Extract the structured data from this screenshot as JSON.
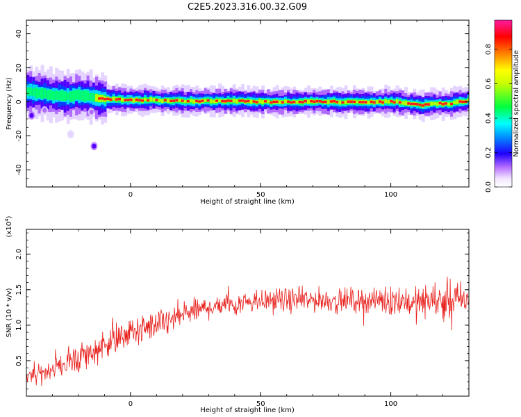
{
  "figure": {
    "title": "C2E5.2023.316.00.32.G09"
  },
  "chart_data": [
    {
      "type": "heatmap",
      "xlabel": "Height of straight line (km)",
      "ylabel": "Frequency (Hz)",
      "xlim": [
        -40,
        130
      ],
      "ylim": [
        -50,
        48
      ],
      "xticks": [
        "0",
        "50",
        "100"
      ],
      "yticks": [
        "-40",
        "-20",
        "0",
        "20",
        "40"
      ],
      "colorbar": {
        "label": "Normalized spectral amplitude",
        "range": [
          0,
          0.97
        ],
        "ticks": [
          "0.0",
          "0.2",
          "0.4",
          "0.6",
          "0.8"
        ]
      },
      "ridge": {
        "x_km": [
          -40,
          -35,
          -30,
          -25,
          -20,
          -15,
          -12,
          -5,
          0,
          10,
          20,
          30,
          40,
          50,
          60,
          70,
          80,
          90,
          97,
          103,
          108,
          112,
          117,
          122,
          127,
          130
        ],
        "frequency_hz": [
          6,
          5,
          4,
          3,
          4,
          3,
          2,
          1.5,
          1,
          1,
          0.5,
          0.5,
          0.5,
          0,
          0,
          0,
          0,
          0,
          0,
          0,
          -1.5,
          -2,
          -1,
          -1,
          0,
          1
        ],
        "peak_amplitude": [
          0.5,
          0.55,
          0.6,
          0.55,
          0.6,
          0.55,
          0.85,
          0.9,
          0.85,
          0.85,
          0.9,
          0.9,
          0.85,
          0.9,
          0.9,
          0.9,
          0.9,
          0.9,
          0.9,
          0.85,
          0.85,
          0.85,
          0.85,
          0.85,
          0.85,
          0.85
        ]
      },
      "blobs": [
        {
          "x_km": -38,
          "frequency_hz": -8,
          "amplitude": 0.2
        },
        {
          "x_km": -33,
          "frequency_hz": -5,
          "amplitude": 0.15
        },
        {
          "x_km": -23,
          "frequency_hz": -19,
          "amplitude": 0.05
        },
        {
          "x_km": -14,
          "frequency_hz": -26,
          "amplitude": 0.2
        },
        {
          "x_km": -15,
          "frequency_hz": -6,
          "amplitude": 0.1
        }
      ]
    },
    {
      "type": "line",
      "xlabel": "Height of straight line (km)",
      "ylabel": "SNR (10 * v/v)",
      "scale_label": "(x10",
      "scale_exp": "4",
      "scale_close": ")",
      "xlim": [
        -40,
        130
      ],
      "ylim": [
        0,
        2.35
      ],
      "xticks": [
        "0",
        "50",
        "100"
      ],
      "yticks": [
        "0.5",
        "1.0",
        "1.5",
        "2.0"
      ],
      "series": [
        {
          "color": "#e8211d",
          "x": [
            -40,
            -35,
            -30,
            -25,
            -20,
            -15,
            -10,
            -5,
            0,
            5,
            10,
            15,
            20,
            25,
            30,
            35,
            40,
            45,
            50,
            55,
            60,
            65,
            70,
            75,
            80,
            85,
            90,
            95,
            100,
            105,
            110,
            115,
            120,
            125,
            130
          ],
          "y": [
            0.25,
            0.3,
            0.4,
            0.45,
            0.55,
            0.6,
            0.75,
            0.8,
            0.9,
            0.95,
            1.0,
            1.05,
            1.15,
            1.2,
            1.25,
            1.3,
            1.3,
            1.35,
            1.35,
            1.35,
            1.35,
            1.35,
            1.35,
            1.35,
            1.35,
            1.35,
            1.35,
            1.35,
            1.35,
            1.35,
            1.3,
            1.35,
            1.35,
            1.35,
            1.35
          ],
          "spread": [
            0.15,
            0.2,
            0.2,
            0.25,
            0.35,
            0.3,
            0.3,
            0.3,
            0.3,
            0.3,
            0.3,
            0.3,
            0.3,
            0.25,
            0.25,
            0.25,
            0.25,
            0.25,
            0.25,
            0.25,
            0.25,
            0.25,
            0.25,
            0.25,
            0.25,
            0.25,
            0.25,
            0.25,
            0.3,
            0.3,
            0.35,
            0.35,
            0.4,
            0.4,
            0.35
          ]
        }
      ]
    }
  ]
}
